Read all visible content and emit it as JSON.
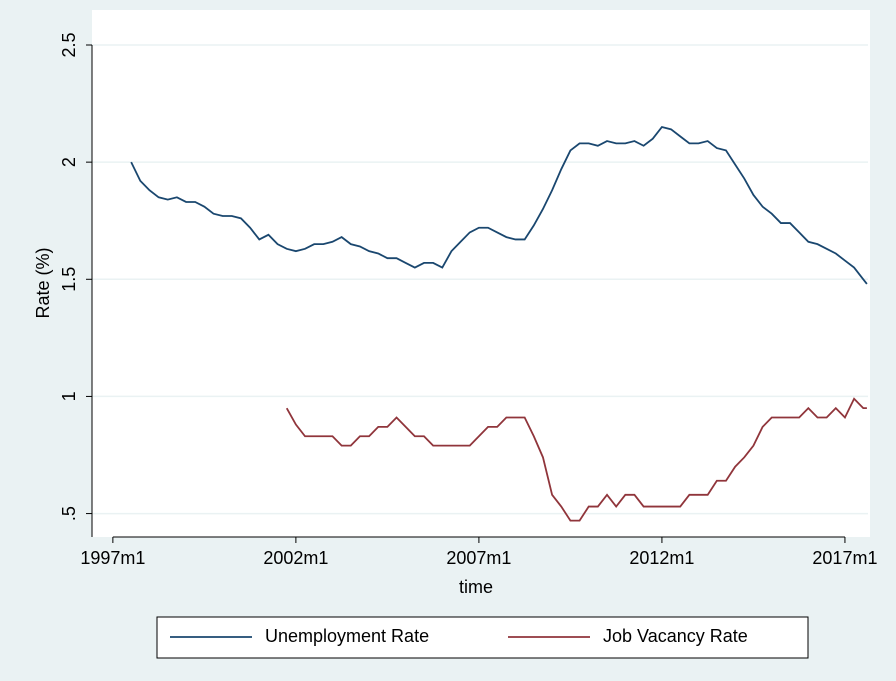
{
  "chart_data": {
    "type": "line",
    "x_label": "time",
    "y_label": "Rate (%)",
    "x": [
      1997.5,
      1997.75,
      1998,
      1998.25,
      1998.5,
      1998.75,
      1999,
      1999.25,
      1999.5,
      1999.75,
      2000,
      2000.25,
      2000.5,
      2000.75,
      2001,
      2001.25,
      2001.5,
      2001.75,
      2002,
      2002.25,
      2002.5,
      2002.75,
      2003,
      2003.25,
      2003.5,
      2003.75,
      2004,
      2004.25,
      2004.5,
      2004.75,
      2005,
      2005.25,
      2005.5,
      2005.75,
      2006,
      2006.25,
      2006.5,
      2006.75,
      2007,
      2007.25,
      2007.5,
      2007.75,
      2008,
      2008.25,
      2008.5,
      2008.75,
      2009,
      2009.25,
      2009.5,
      2009.75,
      2010,
      2010.25,
      2010.5,
      2010.75,
      2011,
      2011.25,
      2011.5,
      2011.75,
      2012,
      2012.25,
      2012.5,
      2012.75,
      2013,
      2013.25,
      2013.5,
      2013.75,
      2014,
      2014.25,
      2014.5,
      2014.75,
      2015,
      2015.25,
      2015.5,
      2015.75,
      2016,
      2016.25,
      2016.5,
      2016.75,
      2017,
      2017.25,
      2017.5,
      2017.6
    ],
    "series": [
      {
        "name": "Unemployment Rate",
        "color": "#1a476f",
        "values": [
          2.0,
          1.92,
          1.88,
          1.85,
          1.84,
          1.85,
          1.83,
          1.83,
          1.81,
          1.78,
          1.77,
          1.77,
          1.76,
          1.72,
          1.67,
          1.69,
          1.65,
          1.63,
          1.62,
          1.63,
          1.65,
          1.65,
          1.66,
          1.68,
          1.65,
          1.64,
          1.62,
          1.61,
          1.59,
          1.59,
          1.57,
          1.55,
          1.57,
          1.57,
          1.55,
          1.62,
          1.66,
          1.7,
          1.72,
          1.72,
          1.7,
          1.68,
          1.67,
          1.67,
          1.73,
          1.8,
          1.88,
          1.97,
          2.05,
          2.08,
          2.08,
          2.07,
          2.09,
          2.08,
          2.08,
          2.09,
          2.07,
          2.1,
          2.15,
          2.14,
          2.11,
          2.08,
          2.08,
          2.09,
          2.06,
          2.05,
          1.99,
          1.93,
          1.86,
          1.81,
          1.78,
          1.74,
          1.74,
          1.7,
          1.66,
          1.65,
          1.63,
          1.61,
          1.58,
          1.55,
          1.5,
          1.48
        ]
      },
      {
        "name": "Job Vacancy Rate",
        "color": "#90353b",
        "values": [
          null,
          null,
          null,
          null,
          null,
          null,
          null,
          null,
          null,
          null,
          null,
          null,
          null,
          null,
          null,
          null,
          null,
          0.95,
          0.88,
          0.83,
          0.83,
          0.83,
          0.83,
          0.79,
          0.79,
          0.83,
          0.83,
          0.87,
          0.87,
          0.91,
          0.87,
          0.83,
          0.83,
          0.79,
          0.79,
          0.79,
          0.79,
          0.79,
          0.83,
          0.87,
          0.87,
          0.91,
          0.91,
          0.91,
          0.83,
          0.74,
          0.58,
          0.53,
          0.47,
          0.47,
          0.53,
          0.53,
          0.58,
          0.53,
          0.58,
          0.58,
          0.53,
          0.53,
          0.53,
          0.53,
          0.53,
          0.58,
          0.58,
          0.58,
          0.64,
          0.64,
          0.7,
          0.74,
          0.79,
          0.87,
          0.91,
          0.91,
          0.91,
          0.91,
          0.95,
          0.91,
          0.91,
          0.95,
          0.91,
          0.99,
          0.95,
          0.95
        ]
      }
    ],
    "xlim": [
      1996.43,
      2017.63
    ],
    "xticks": [
      {
        "value": 1997,
        "label": "1997m1"
      },
      {
        "value": 2002,
        "label": "2002m1"
      },
      {
        "value": 2007,
        "label": "2007m1"
      },
      {
        "value": 2012,
        "label": "2012m1"
      },
      {
        "value": 2017,
        "label": "2017m1"
      }
    ],
    "ylim": [
      0.4,
      2.5
    ],
    "yticks": [
      {
        "value": 0.5,
        "label": ".5"
      },
      1,
      1.5,
      2,
      2.5
    ],
    "grid": true
  }
}
